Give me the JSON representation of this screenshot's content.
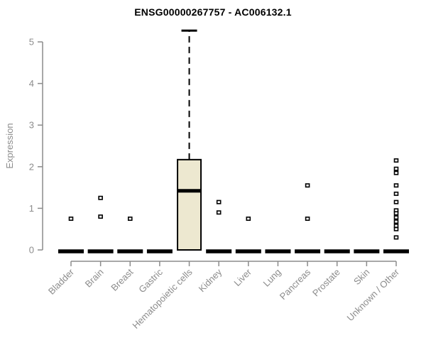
{
  "chart_data": {
    "type": "boxplot",
    "title": "ENSG00000267757 - AC006132.1",
    "xlabel": "",
    "ylabel": "Expression",
    "ylim": [
      0,
      5
    ],
    "yticks": [
      0,
      1,
      2,
      3,
      4,
      5
    ],
    "grid": false,
    "legend": null,
    "categories": [
      "Bladder",
      "Brain",
      "Breast",
      "Gastric",
      "Hematopoietic cells",
      "Kidney",
      "Liver",
      "Lung",
      "Pancreas",
      "Prostate",
      "Skin",
      "Unknown / Other"
    ],
    "boxes": [
      {
        "category": "Bladder",
        "q1": 0,
        "median": 0,
        "q3": 0,
        "whisker_low": 0,
        "whisker_high": 0,
        "outliers": [
          0.75
        ]
      },
      {
        "category": "Brain",
        "q1": 0,
        "median": 0,
        "q3": 0,
        "whisker_low": 0,
        "whisker_high": 0,
        "outliers": [
          1.25,
          0.8
        ]
      },
      {
        "category": "Breast",
        "q1": 0,
        "median": 0,
        "q3": 0,
        "whisker_low": 0,
        "whisker_high": 0,
        "outliers": [
          0.75
        ]
      },
      {
        "category": "Gastric",
        "q1": 0,
        "median": 0,
        "q3": 0,
        "whisker_low": 0,
        "whisker_high": 0,
        "outliers": []
      },
      {
        "category": "Hematopoietic cells",
        "q1": 0,
        "median": 1.42,
        "q3": 2.17,
        "whisker_low": 0,
        "whisker_high": 5.27,
        "outliers": []
      },
      {
        "category": "Kidney",
        "q1": 0,
        "median": 0,
        "q3": 0,
        "whisker_low": 0,
        "whisker_high": 0,
        "outliers": [
          1.15,
          0.9
        ]
      },
      {
        "category": "Liver",
        "q1": 0,
        "median": 0,
        "q3": 0,
        "whisker_low": 0,
        "whisker_high": 0,
        "outliers": [
          0.75
        ]
      },
      {
        "category": "Lung",
        "q1": 0,
        "median": 0,
        "q3": 0,
        "whisker_low": 0,
        "whisker_high": 0,
        "outliers": []
      },
      {
        "category": "Pancreas",
        "q1": 0,
        "median": 0,
        "q3": 0,
        "whisker_low": 0,
        "whisker_high": 0,
        "outliers": [
          1.55,
          0.75
        ]
      },
      {
        "category": "Prostate",
        "q1": 0,
        "median": 0,
        "q3": 0,
        "whisker_low": 0,
        "whisker_high": 0,
        "outliers": []
      },
      {
        "category": "Skin",
        "q1": 0,
        "median": 0,
        "q3": 0,
        "whisker_low": 0,
        "whisker_high": 0,
        "outliers": []
      },
      {
        "category": "Unknown / Other",
        "q1": 0,
        "median": 0,
        "q3": 0,
        "whisker_low": 0,
        "whisker_high": 0,
        "outliers": [
          2.15,
          1.95,
          1.85,
          1.55,
          1.35,
          1.15,
          0.95,
          0.88,
          0.78,
          0.68,
          0.58,
          0.5,
          0.3
        ]
      }
    ],
    "colors": {
      "box_fill": "#EDE8D0",
      "box_border": "#000000",
      "median": "#000000",
      "whisker": "#000000",
      "outlier_fill": "#FFFFFF",
      "outlier_border": "#000000",
      "axis": "#8C8C8C",
      "title": "#000000",
      "background": "#FFFFFF"
    }
  }
}
